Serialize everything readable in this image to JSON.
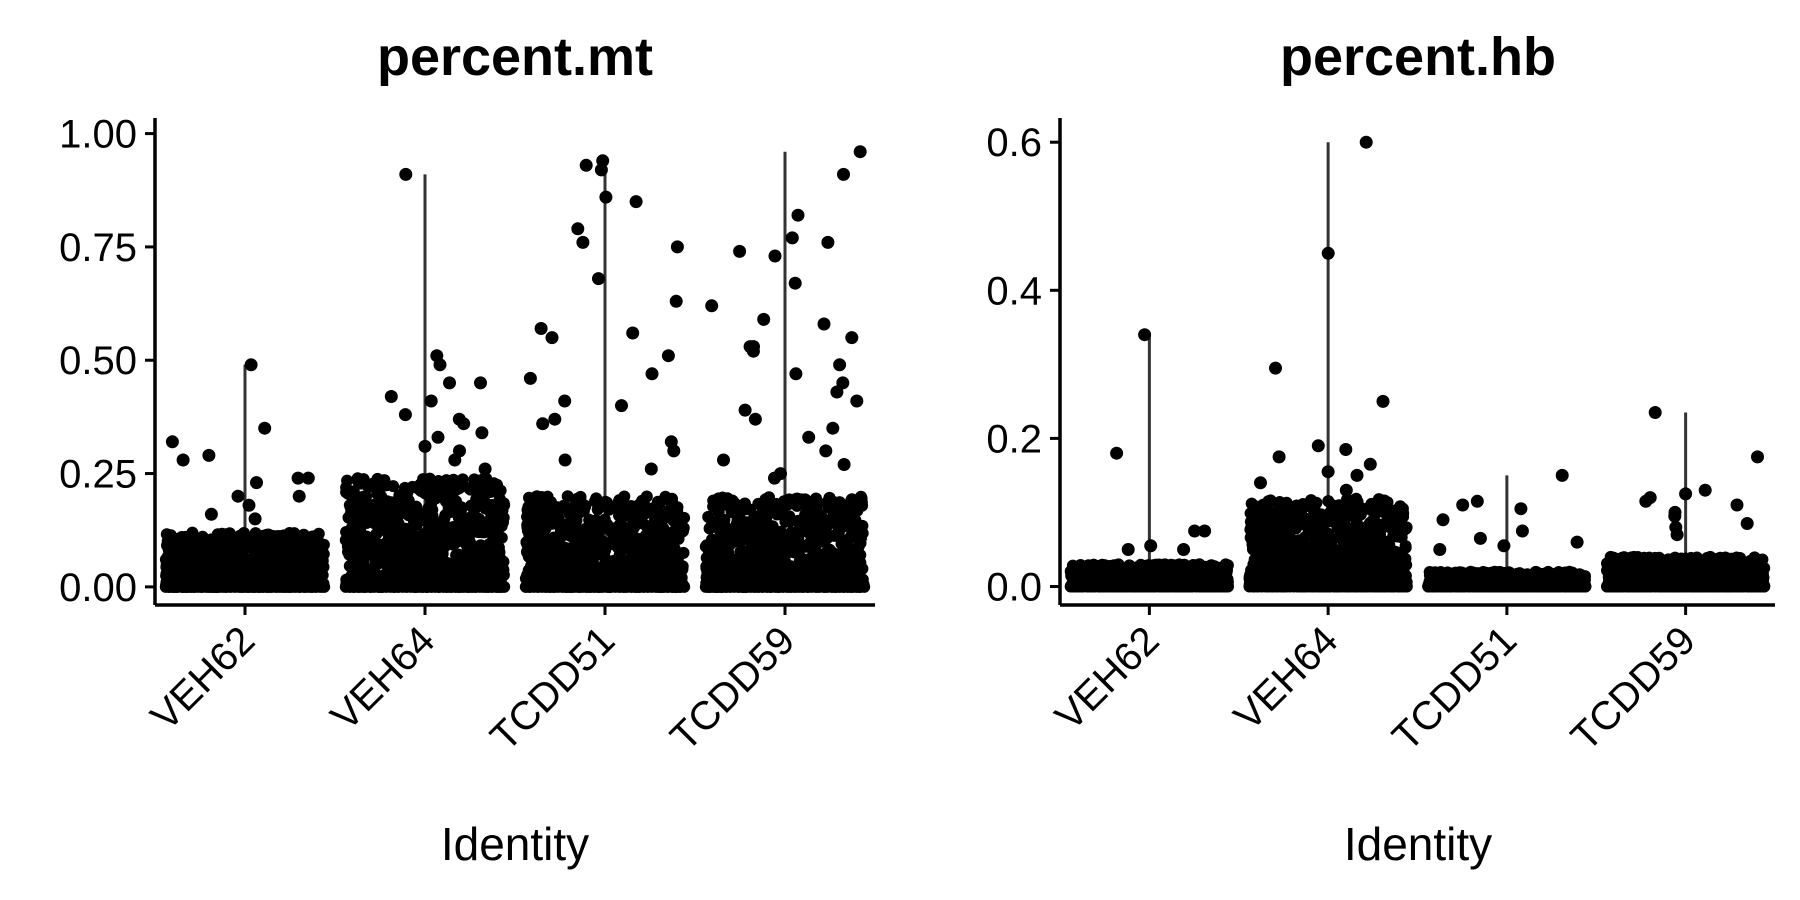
{
  "chart_data": [
    {
      "type": "violin-jitter",
      "title": "percent.mt",
      "xlabel": "Identity",
      "ylabel": "",
      "categories": [
        "VEH62",
        "VEH64",
        "TCDD51",
        "TCDD59"
      ],
      "ylim": [
        -0.04,
        1.03
      ],
      "yticks": [
        "0.00",
        "0.25",
        "0.50",
        "0.75",
        "1.00"
      ],
      "ytick_values": [
        0,
        0.25,
        0.5,
        0.75,
        1.0
      ],
      "max_values": [
        0.49,
        0.91,
        0.94,
        0.96
      ],
      "dense_max": [
        0.12,
        0.24,
        0.2,
        0.2
      ],
      "outliers": [
        [
          0.35,
          0.29,
          0.24,
          0.2,
          0.32,
          0.28,
          0.49,
          0.24,
          0.23,
          0.2,
          0.18,
          0.16,
          0.15
        ],
        [
          0.91,
          0.51,
          0.45,
          0.45,
          0.42,
          0.38,
          0.36,
          0.34,
          0.33,
          0.31,
          0.3,
          0.28,
          0.41,
          0.37,
          0.49,
          0.26
        ],
        [
          0.85,
          0.93,
          0.94,
          0.92,
          0.86,
          0.79,
          0.76,
          0.75,
          0.68,
          0.63,
          0.57,
          0.56,
          0.55,
          0.51,
          0.47,
          0.46,
          0.41,
          0.4,
          0.37,
          0.36,
          0.32,
          0.3,
          0.28,
          0.26
        ],
        [
          0.96,
          0.91,
          0.82,
          0.77,
          0.76,
          0.74,
          0.73,
          0.67,
          0.62,
          0.59,
          0.58,
          0.55,
          0.53,
          0.53,
          0.52,
          0.49,
          0.47,
          0.45,
          0.43,
          0.41,
          0.39,
          0.37,
          0.35,
          0.33,
          0.3,
          0.28,
          0.27,
          0.25,
          0.24
        ]
      ],
      "legend": "none",
      "grid": false
    },
    {
      "type": "violin-jitter",
      "title": "percent.hb",
      "xlabel": "Identity",
      "ylabel": "",
      "categories": [
        "VEH62",
        "VEH64",
        "TCDD51",
        "TCDD59"
      ],
      "ylim": [
        -0.025,
        0.63
      ],
      "yticks": [
        "0.0",
        "0.2",
        "0.4",
        "0.6"
      ],
      "ytick_values": [
        0,
        0.2,
        0.4,
        0.6
      ],
      "max_values": [
        0.34,
        0.6,
        0.15,
        0.235
      ],
      "dense_max": [
        0.03,
        0.12,
        0.02,
        0.04
      ],
      "outliers": [
        [
          0.34,
          0.18,
          0.075,
          0.075,
          0.055,
          0.05,
          0.05
        ],
        [
          0.6,
          0.45,
          0.295,
          0.25,
          0.19,
          0.185,
          0.175,
          0.165,
          0.155,
          0.15,
          0.14,
          0.13
        ],
        [
          0.15,
          0.115,
          0.11,
          0.105,
          0.09,
          0.075,
          0.065,
          0.06,
          0.055,
          0.05
        ],
        [
          0.235,
          0.175,
          0.13,
          0.125,
          0.12,
          0.115,
          0.11,
          0.1,
          0.095,
          0.085,
          0.08,
          0.07
        ]
      ],
      "legend": "none",
      "grid": false
    }
  ]
}
